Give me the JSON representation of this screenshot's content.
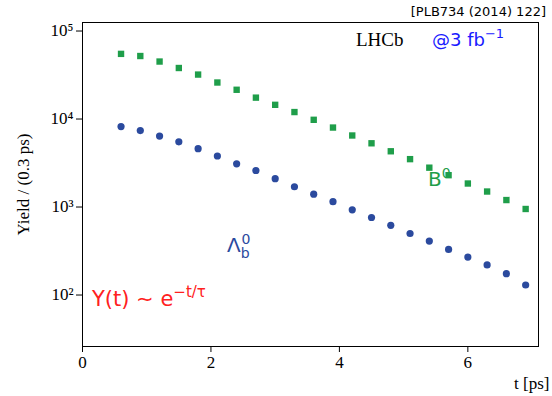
{
  "chart_data": {
    "type": "scatter",
    "subtitle": "[PLB734 (2014) 122]",
    "x_label": "t [ps]",
    "y_label": "Yield / (0.3 ps)",
    "log": "y",
    "grid": false,
    "xlim": [
      0,
      7.1
    ],
    "xticks": [
      0,
      2,
      4,
      6
    ],
    "ylim": [
      26,
      125000
    ],
    "yticks": [
      {
        "value": 100,
        "label": "10²"
      },
      {
        "value": 1000,
        "label": "10³"
      },
      {
        "value": 10000,
        "label": "10⁴"
      },
      {
        "value": 100000,
        "label": "10⁵"
      }
    ],
    "x": [
      0.6,
      0.9,
      1.2,
      1.5,
      1.8,
      2.1,
      2.4,
      2.7,
      3.0,
      3.3,
      3.6,
      3.9,
      4.2,
      4.5,
      4.8,
      5.1,
      5.4,
      5.7,
      6.0,
      6.3,
      6.6,
      6.9
    ],
    "series": [
      {
        "name": "B",
        "sup": "0",
        "color": "#1f9e4a",
        "marker": "square",
        "values": [
          55000,
          52000,
          45000,
          38000,
          32000,
          26000,
          21500,
          17500,
          14500,
          12000,
          9800,
          8000,
          6500,
          5300,
          4300,
          3500,
          2800,
          2300,
          1850,
          1500,
          1200,
          950
        ]
      },
      {
        "name": "Λ",
        "sub": "b",
        "sup": "0",
        "color": "#2b4a9e",
        "marker": "circle",
        "values": [
          8200,
          7400,
          6400,
          5500,
          4600,
          3800,
          3100,
          2600,
          2100,
          1700,
          1400,
          1150,
          930,
          760,
          620,
          500,
          410,
          330,
          270,
          220,
          175,
          130
        ]
      }
    ],
    "annotations": [
      {
        "text": "LHCb",
        "color": "#000000"
      },
      {
        "text": "@3 fb",
        "sup": "−1",
        "color": "#1a1aff"
      },
      {
        "text": "Y(t) ∼ e",
        "sup": "−t/τ",
        "color": "#ff2020"
      }
    ]
  }
}
